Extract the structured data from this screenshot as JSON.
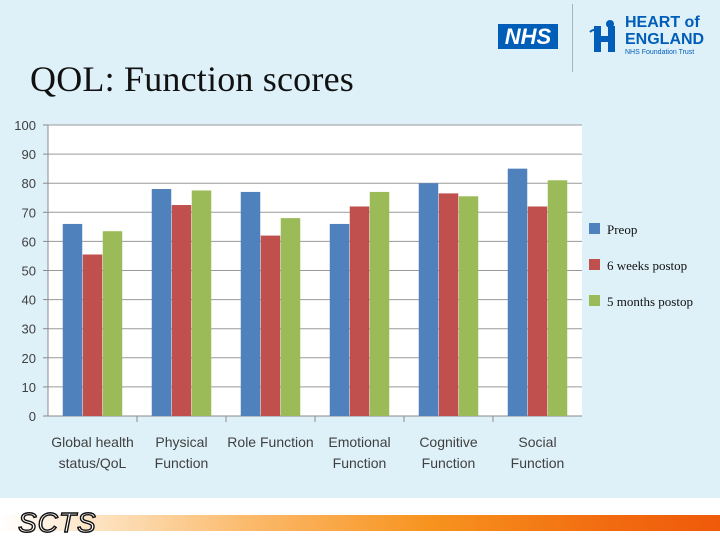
{
  "slide": {
    "title": "QOL: Function scores",
    "logos": {
      "nhs": "NHS",
      "trust_line1": "HEART of",
      "trust_line2": "ENGLAND",
      "trust_line3": "NHS Foundation Trust"
    },
    "footer_brand": "SCTS"
  },
  "chart_data": {
    "type": "bar",
    "title": "",
    "xlabel": "",
    "ylabel": "",
    "ylim": [
      0,
      100
    ],
    "yticks": [
      0,
      10,
      20,
      30,
      40,
      50,
      60,
      70,
      80,
      90,
      100
    ],
    "grid": true,
    "legend_position": "right",
    "categories": [
      [
        "Global health",
        "status/QoL"
      ],
      [
        "Physical",
        "Function"
      ],
      [
        "Role Function"
      ],
      [
        "Emotional",
        "Function"
      ],
      [
        "Cognitive",
        "Function"
      ],
      [
        "Social",
        "Function"
      ]
    ],
    "series": [
      {
        "name": "Preop",
        "color": "#4f81bd",
        "values": [
          66,
          78,
          77,
          66,
          80,
          85
        ]
      },
      {
        "name": "6 weeks postop",
        "color": "#c0504d",
        "values": [
          55.5,
          72.5,
          62,
          72,
          76.5,
          72
        ]
      },
      {
        "name": "5 months postop",
        "color": "#9bbb59",
        "values": [
          63.5,
          77.5,
          68,
          77,
          75.5,
          81
        ]
      }
    ]
  }
}
